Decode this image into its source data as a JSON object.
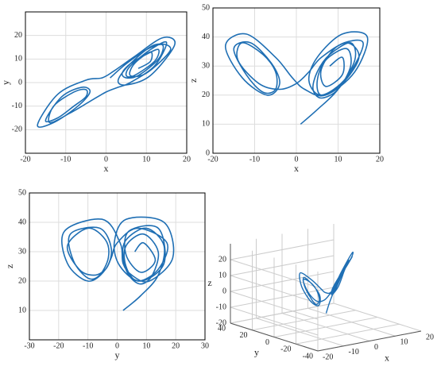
{
  "chart_data": [
    {
      "type": "line",
      "xlabel": "x",
      "ylabel": "y",
      "x": [
        1,
        5,
        10,
        14,
        13,
        8,
        5,
        4,
        6,
        10,
        13,
        12,
        7,
        5,
        6,
        11,
        15,
        12,
        6,
        3,
        0,
        -4,
        -9,
        -14,
        -13,
        -8,
        -5,
        -5,
        -8,
        -12,
        -15,
        -11,
        -6,
        -4,
        -7,
        -13,
        -17,
        -12,
        -5,
        -1,
        2,
        7,
        14,
        17,
        11,
        5,
        3,
        6,
        12,
        16,
        10,
        6,
        7,
        11,
        11,
        8
      ],
      "series": [
        {
          "color": "#1f6fb4",
          "values": [
            2,
            8,
            14,
            16,
            10,
            3,
            2,
            4,
            8,
            12,
            14,
            9,
            3,
            3,
            7,
            14,
            17,
            7,
            0,
            -2,
            -4,
            -8,
            -13,
            -17,
            -10,
            -4,
            -3,
            -6,
            -10,
            -15,
            -16,
            -6,
            -2,
            -4,
            -10,
            -17,
            -18,
            -5,
            1,
            2,
            5,
            11,
            19,
            16,
            3,
            -1,
            1,
            8,
            16,
            14,
            4,
            3,
            8,
            13,
            9,
            6
          ]
        }
      ],
      "xlim": [
        -20,
        20
      ],
      "ylim": [
        -30,
        30
      ],
      "xticks": [
        -20,
        -10,
        0,
        10,
        20
      ],
      "yticks": [
        -20,
        -10,
        0,
        10,
        20
      ],
      "grid": true
    },
    {
      "type": "line",
      "xlabel": "x",
      "ylabel": "z",
      "x": [
        1,
        5,
        10,
        14,
        13,
        8,
        5,
        4,
        6,
        10,
        13,
        12,
        7,
        5,
        6,
        11,
        15,
        12,
        6,
        3,
        0,
        -4,
        -9,
        -14,
        -13,
        -8,
        -5,
        -5,
        -8,
        -12,
        -15,
        -11,
        -6,
        -4,
        -7,
        -13,
        -17,
        -12,
        -5,
        -1,
        2,
        7,
        14,
        17,
        11,
        5,
        3,
        6,
        12,
        16,
        10,
        6,
        7,
        11,
        11,
        8
      ],
      "series": [
        {
          "color": "#1f6fb4",
          "values": [
            10,
            15,
            22,
            32,
            38,
            34,
            28,
            22,
            19,
            22,
            30,
            36,
            32,
            25,
            20,
            24,
            33,
            38,
            33,
            28,
            24,
            22,
            24,
            32,
            38,
            34,
            28,
            22,
            21,
            27,
            36,
            38,
            31,
            24,
            20,
            26,
            37,
            41,
            33,
            26,
            22,
            20,
            28,
            40,
            41,
            33,
            25,
            20,
            26,
            38,
            37,
            29,
            23,
            27,
            33,
            30
          ]
        }
      ],
      "xlim": [
        -20,
        20
      ],
      "ylim": [
        0,
        50
      ],
      "xticks": [
        -20,
        -10,
        0,
        10,
        20
      ],
      "yticks": [
        0,
        10,
        20,
        30,
        40,
        50
      ],
      "grid": true
    },
    {
      "type": "line",
      "xlabel": "y",
      "ylabel": "z",
      "x": [
        2,
        8,
        14,
        16,
        10,
        3,
        2,
        4,
        8,
        12,
        14,
        9,
        3,
        3,
        7,
        14,
        17,
        7,
        0,
        -2,
        -4,
        -8,
        -13,
        -17,
        -10,
        -4,
        -3,
        -6,
        -10,
        -15,
        -16,
        -6,
        -2,
        -4,
        -10,
        -17,
        -18,
        -5,
        1,
        2,
        5,
        11,
        19,
        16,
        3,
        -1,
        1,
        8,
        16,
        14,
        4,
        3,
        8,
        13,
        9,
        6
      ],
      "series": [
        {
          "color": "#1f6fb4",
          "values": [
            10,
            15,
            22,
            32,
            38,
            34,
            28,
            22,
            19,
            22,
            30,
            36,
            32,
            25,
            20,
            24,
            33,
            38,
            33,
            28,
            24,
            22,
            24,
            32,
            38,
            34,
            28,
            22,
            21,
            27,
            36,
            38,
            31,
            24,
            20,
            26,
            37,
            41,
            33,
            26,
            22,
            20,
            28,
            40,
            41,
            33,
            25,
            20,
            26,
            38,
            37,
            29,
            23,
            27,
            33,
            30
          ]
        }
      ],
      "xlim": [
        -30,
        30
      ],
      "ylim": [
        0,
        50
      ],
      "xticks": [
        -30,
        -20,
        -10,
        0,
        10,
        20,
        30
      ],
      "yticks": [
        10,
        20,
        30,
        40,
        50
      ],
      "grid": true
    },
    {
      "type": "line3d",
      "xlabel": "x",
      "ylabel": "y",
      "zlabel": "z",
      "color": "#1f6fb4",
      "x": [
        1,
        5,
        10,
        14,
        13,
        8,
        5,
        4,
        6,
        10,
        13,
        12,
        7,
        5,
        6,
        11,
        15,
        12,
        6,
        3,
        0,
        -4,
        -9,
        -14,
        -13,
        -8,
        -5,
        -5,
        -8,
        -12,
        -15,
        -11,
        -6,
        -4,
        -7,
        -13,
        -17,
        -12,
        -5,
        -1,
        2,
        7,
        14,
        17,
        11,
        5,
        3,
        6,
        12,
        16,
        10,
        6,
        7,
        11,
        11,
        8
      ],
      "y": [
        2,
        8,
        14,
        16,
        10,
        3,
        2,
        4,
        8,
        12,
        14,
        9,
        3,
        3,
        7,
        14,
        17,
        7,
        0,
        -2,
        -4,
        -8,
        -13,
        -17,
        -10,
        -4,
        -3,
        -6,
        -10,
        -15,
        -16,
        -6,
        -2,
        -4,
        -10,
        -17,
        -18,
        -5,
        1,
        2,
        5,
        11,
        19,
        16,
        3,
        -1,
        1,
        8,
        16,
        14,
        4,
        3,
        8,
        13,
        9,
        6
      ],
      "z": [
        -12,
        -7,
        0,
        10,
        16,
        12,
        6,
        0,
        -3,
        0,
        8,
        14,
        10,
        3,
        -2,
        2,
        11,
        16,
        11,
        6,
        2,
        0,
        2,
        10,
        16,
        12,
        6,
        0,
        -1,
        5,
        14,
        16,
        9,
        2,
        -2,
        4,
        15,
        19,
        11,
        4,
        0,
        -2,
        6,
        18,
        19,
        11,
        3,
        -2,
        4,
        16,
        15,
        7,
        1,
        5,
        11,
        8
      ],
      "xlim": [
        -20,
        20
      ],
      "ylim": [
        -40,
        40
      ],
      "zlim": [
        -20,
        30
      ],
      "xticks": [
        -20,
        -10,
        0,
        10,
        20
      ],
      "yticks": [
        -40,
        -20,
        0,
        20,
        40
      ],
      "zticks": [
        -20,
        -10,
        0,
        10,
        20
      ],
      "grid": true
    }
  ]
}
